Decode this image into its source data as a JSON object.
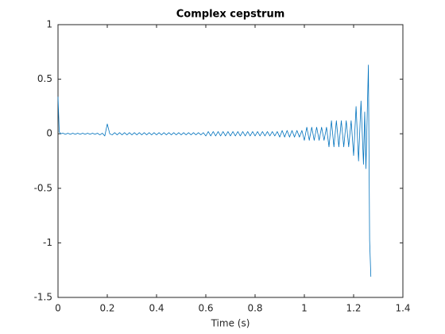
{
  "chart_data": {
    "type": "line",
    "title": "Complex cepstrum",
    "xlabel": "Time (s)",
    "color": "#0072bd",
    "x": [
      0,
      0.005,
      0.01,
      0.02,
      0.03,
      0.04,
      0.05,
      0.06,
      0.07,
      0.08,
      0.09,
      0.1,
      0.11,
      0.12,
      0.13,
      0.14,
      0.15,
      0.16,
      0.17,
      0.18,
      0.19,
      0.2,
      0.21,
      0.22,
      0.23,
      0.24,
      0.25,
      0.26,
      0.27,
      0.28,
      0.29,
      0.3,
      0.31,
      0.32,
      0.33,
      0.34,
      0.35,
      0.36,
      0.37,
      0.38,
      0.39,
      0.4,
      0.41,
      0.42,
      0.43,
      0.44,
      0.45,
      0.46,
      0.47,
      0.48,
      0.49,
      0.5,
      0.51,
      0.52,
      0.53,
      0.54,
      0.55,
      0.56,
      0.57,
      0.58,
      0.59,
      0.6,
      0.61,
      0.62,
      0.63,
      0.64,
      0.65,
      0.66,
      0.67,
      0.68,
      0.69,
      0.7,
      0.71,
      0.72,
      0.73,
      0.74,
      0.75,
      0.76,
      0.77,
      0.78,
      0.79,
      0.8,
      0.81,
      0.82,
      0.83,
      0.84,
      0.85,
      0.86,
      0.87,
      0.88,
      0.89,
      0.9,
      0.91,
      0.92,
      0.93,
      0.94,
      0.95,
      0.96,
      0.97,
      0.98,
      0.99,
      1.0,
      1.01,
      1.02,
      1.03,
      1.04,
      1.05,
      1.06,
      1.07,
      1.08,
      1.09,
      1.1,
      1.11,
      1.12,
      1.13,
      1.14,
      1.15,
      1.16,
      1.17,
      1.18,
      1.19,
      1.2,
      1.21,
      1.22,
      1.23,
      1.24,
      1.245,
      1.25,
      1.26,
      1.265,
      1.27
    ],
    "values": [
      0.34,
      0.02,
      0,
      0.005,
      -0.005,
      0.005,
      -0.005,
      0.005,
      -0.005,
      0.005,
      -0.005,
      0.005,
      -0.005,
      0.005,
      -0.005,
      0.005,
      -0.005,
      0.005,
      -0.01,
      0.005,
      -0.02,
      0.09,
      0,
      -0.01,
      0.01,
      -0.01,
      0.01,
      -0.01,
      0.01,
      -0.01,
      0.01,
      -0.01,
      0.01,
      -0.01,
      0.01,
      -0.01,
      0.01,
      -0.01,
      0.01,
      -0.01,
      0.01,
      -0.01,
      0.01,
      -0.01,
      0.01,
      -0.01,
      0.01,
      -0.01,
      0.01,
      -0.01,
      0.01,
      -0.01,
      0.01,
      -0.01,
      0.01,
      -0.01,
      0.01,
      -0.01,
      0.01,
      -0.01,
      0.01,
      -0.02,
      0.02,
      -0.02,
      0.02,
      -0.02,
      0.02,
      -0.02,
      0.02,
      -0.02,
      0.02,
      -0.02,
      0.02,
      -0.02,
      0.02,
      -0.02,
      0.02,
      -0.02,
      0.02,
      -0.02,
      0.02,
      -0.02,
      0.02,
      -0.02,
      0.02,
      -0.02,
      0.02,
      -0.02,
      0.02,
      -0.02,
      0.02,
      -0.03,
      0.03,
      -0.03,
      0.03,
      -0.03,
      0.03,
      -0.03,
      0.03,
      -0.03,
      0.03,
      -0.06,
      0.06,
      -0.06,
      0.06,
      -0.06,
      0.06,
      -0.06,
      0.06,
      -0.06,
      0.06,
      -0.12,
      0.12,
      -0.12,
      0.12,
      -0.12,
      0.12,
      -0.12,
      0.12,
      -0.12,
      0.12,
      -0.2,
      0.25,
      -0.25,
      0.3,
      -0.28,
      0.2,
      -0.32,
      0.63,
      -0.98,
      -1.31
    ],
    "xlim": [
      0,
      1.4
    ],
    "xticks": [
      0,
      0.2,
      0.4,
      0.6,
      0.8,
      1,
      1.2,
      1.4
    ],
    "ylim": [
      -1.5,
      1
    ],
    "yticks": [
      -1.5,
      -1,
      -0.5,
      0,
      0.5,
      1
    ]
  }
}
